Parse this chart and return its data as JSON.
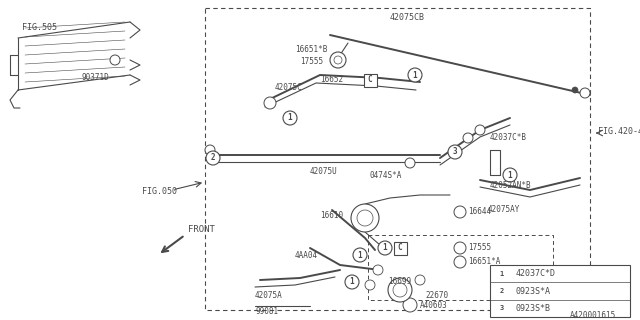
{
  "bg_color": "#ffffff",
  "line_color": "#4a4a4a",
  "doc_id": "A420001615",
  "legend_items": [
    {
      "num": "1",
      "text": "42037C*D"
    },
    {
      "num": "2",
      "text": "0923S*A"
    },
    {
      "num": "3",
      "text": "0923S*B"
    }
  ]
}
